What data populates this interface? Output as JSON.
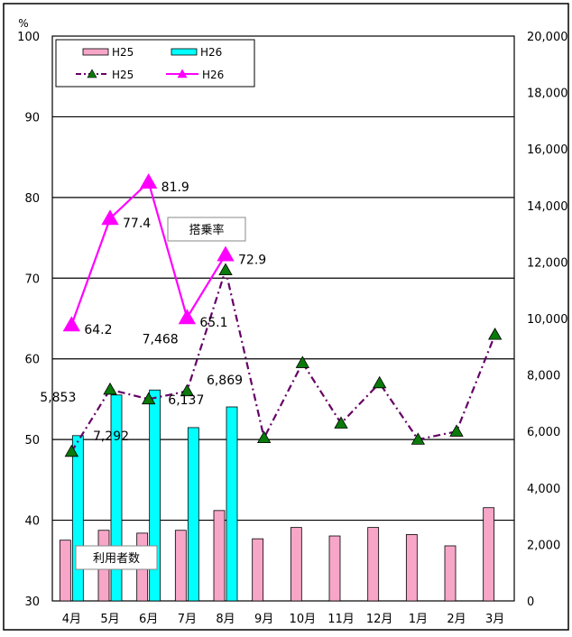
{
  "chart_data": {
    "type": "bar",
    "categories": [
      "4月",
      "5月",
      "6月",
      "7月",
      "8月",
      "9月",
      "10月",
      "11月",
      "12月",
      "1月",
      "2月",
      "3月"
    ],
    "left_axis": {
      "unit": "%",
      "ylim": [
        30,
        100
      ],
      "ticks": [
        "30",
        "40",
        "50",
        "60",
        "70",
        "80",
        "90",
        "100"
      ]
    },
    "right_axis": {
      "ylim": [
        0,
        20000
      ],
      "ticks": [
        "0",
        "2,000",
        "4,000",
        "6,000",
        "8,000",
        "10,000",
        "12,000",
        "14,000",
        "16,000",
        "18,000",
        "20,000"
      ]
    },
    "bar_series": [
      {
        "name": "H25",
        "color": "#f7a6c8",
        "values": [
          2150,
          2500,
          2400,
          2500,
          3200,
          2200,
          2600,
          2300,
          2600,
          2350,
          1950,
          3300
        ]
      },
      {
        "name": "H26",
        "color": "#00ffff",
        "values": [
          5853,
          7292,
          7468,
          6137,
          6869,
          null,
          null,
          null,
          null,
          null,
          null,
          null
        ]
      }
    ],
    "line_series": [
      {
        "name": "H25",
        "color": "#660066",
        "values": [
          48.5,
          56.2,
          55.0,
          56.0,
          71.0,
          50.2,
          59.5,
          52.0,
          57.0,
          50.0,
          51.0,
          63.0
        ]
      },
      {
        "name": "H26",
        "color": "#ff00ff",
        "values": [
          64.2,
          77.4,
          81.9,
          65.1,
          72.9,
          null,
          null,
          null,
          null,
          null,
          null,
          null
        ]
      }
    ],
    "bar_labels": [
      "5,853",
      "7,292",
      "7,468",
      "6,137",
      "6,869"
    ],
    "line_labels": [
      "64.2",
      "77.4",
      "81.9",
      "65.1",
      "72.9"
    ],
    "annotations": {
      "rate_label": "搭乗率",
      "users_label": "利用者数"
    },
    "grid": true,
    "legend": "top-left"
  }
}
